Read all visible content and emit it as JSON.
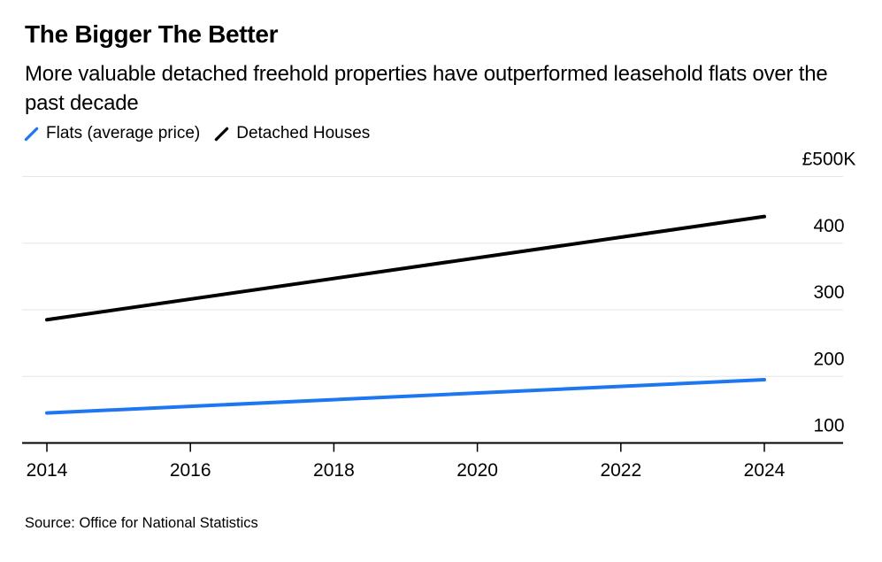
{
  "header": {
    "title": "The Bigger The Better",
    "subtitle": "More valuable detached freehold properties have outperformed leasehold flats over the past decade"
  },
  "legend": [
    {
      "label": "Flats (average price)",
      "color": "#1e77f0"
    },
    {
      "label": "Detached Houses",
      "color": "#000000"
    }
  ],
  "source": "Source: Office for National Statistics",
  "colors": {
    "flats_line": "#1e77f0",
    "detached_line": "#000000",
    "gridline": "#e6e6e6",
    "axis": "#000000",
    "background": "#ffffff"
  },
  "chart_data": {
    "type": "line",
    "title": "The Bigger The Better",
    "subtitle": "More valuable detached freehold properties have outperformed leasehold flats over the past decade",
    "unit": "GBP thousands",
    "x": [
      2014,
      2024
    ],
    "series": [
      {
        "name": "Flats (average price)",
        "color": "#1e77f0",
        "values": [
          145,
          195
        ]
      },
      {
        "name": "Detached Houses",
        "color": "#000000",
        "values": [
          285,
          440
        ]
      }
    ],
    "xticks": [
      2014,
      2016,
      2018,
      2020,
      2022,
      2024
    ],
    "yticks": [
      {
        "value": 100,
        "label": "100"
      },
      {
        "value": 200,
        "label": "200"
      },
      {
        "value": 300,
        "label": "300"
      },
      {
        "value": 400,
        "label": "400"
      },
      {
        "value": 500,
        "label": "£500K"
      }
    ],
    "xlim": [
      2014,
      2024
    ],
    "ylim": [
      100,
      520
    ],
    "grid": "horizontal",
    "y_axis_side": "right",
    "legend_position": "top-left",
    "baseline_value": 100,
    "source": "Source: Office for National Statistics"
  }
}
